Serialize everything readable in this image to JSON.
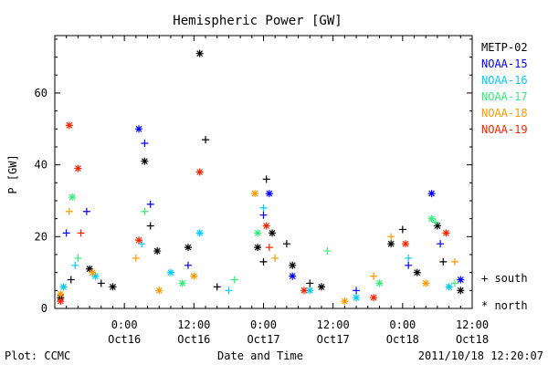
{
  "chart_data": {
    "type": "scatter",
    "title": "Hemispheric Power [GW]",
    "ylabel": "P [GW]",
    "xlabel": "Date and Time",
    "ylim": [
      0,
      76
    ],
    "xlim": [
      "2011-10-15T12:00",
      "2011-10-18T12:00"
    ],
    "y_ticks": [
      0,
      20,
      40,
      60
    ],
    "x_ticks": [
      {
        "time": "2011-10-16T00:00",
        "label_top": "0:00",
        "label_bottom": "Oct16"
      },
      {
        "time": "2011-10-16T12:00",
        "label_top": "12:00",
        "label_bottom": "Oct16"
      },
      {
        "time": "2011-10-17T00:00",
        "label_top": "0:00",
        "label_bottom": "Oct17"
      },
      {
        "time": "2011-10-17T12:00",
        "label_top": "12:00",
        "label_bottom": "Oct17"
      },
      {
        "time": "2011-10-18T00:00",
        "label_top": "0:00",
        "label_bottom": "Oct18"
      },
      {
        "time": "2011-10-18T12:00",
        "label_top": "12:00",
        "label_bottom": "Oct18"
      }
    ],
    "marker_legend": [
      {
        "symbol": "+",
        "label": "south"
      },
      {
        "symbol": "*",
        "label": "north"
      }
    ],
    "series": [
      {
        "name": "METP-02",
        "color": "#000000",
        "points": [
          [
            "2011-10-15T13:00",
            3,
            "n"
          ],
          [
            "2011-10-15T14:48",
            8,
            "s"
          ],
          [
            "2011-10-15T18:00",
            11,
            "n"
          ],
          [
            "2011-10-15T20:00",
            7,
            "s"
          ],
          [
            "2011-10-15T22:00",
            6,
            "n"
          ],
          [
            "2011-10-16T03:30",
            41,
            "n"
          ],
          [
            "2011-10-16T04:30",
            23,
            "s"
          ],
          [
            "2011-10-16T05:40",
            16,
            "n"
          ],
          [
            "2011-10-16T11:00",
            17,
            "n"
          ],
          [
            "2011-10-16T13:00",
            71,
            "n"
          ],
          [
            "2011-10-16T14:00",
            47,
            "s"
          ],
          [
            "2011-10-16T16:00",
            6,
            "s"
          ],
          [
            "2011-10-16T23:00",
            17,
            "n"
          ],
          [
            "2011-10-17T00:00",
            13,
            "s"
          ],
          [
            "2011-10-17T00:30",
            36,
            "s"
          ],
          [
            "2011-10-17T01:30",
            21,
            "n"
          ],
          [
            "2011-10-17T04:00",
            18,
            "s"
          ],
          [
            "2011-10-17T05:00",
            12,
            "n"
          ],
          [
            "2011-10-17T08:00",
            7,
            "s"
          ],
          [
            "2011-10-17T10:00",
            6,
            "n"
          ],
          [
            "2011-10-17T22:00",
            18,
            "n"
          ],
          [
            "2011-10-18T00:00",
            22,
            "s"
          ],
          [
            "2011-10-18T02:30",
            10,
            "n"
          ],
          [
            "2011-10-18T06:00",
            23,
            "n"
          ],
          [
            "2011-10-18T07:00",
            13,
            "s"
          ],
          [
            "2011-10-18T10:00",
            5,
            "n"
          ]
        ]
      },
      {
        "name": "NOAA-15",
        "color": "#0000ff",
        "points": [
          [
            "2011-10-15T14:00",
            21,
            "s"
          ],
          [
            "2011-10-15T17:30",
            27,
            "s"
          ],
          [
            "2011-10-16T02:30",
            50,
            "n"
          ],
          [
            "2011-10-16T03:30",
            46,
            "s"
          ],
          [
            "2011-10-16T04:30",
            29,
            "s"
          ],
          [
            "2011-10-16T11:00",
            12,
            "s"
          ],
          [
            "2011-10-17T01:00",
            32,
            "n"
          ],
          [
            "2011-10-17T00:00",
            26,
            "s"
          ],
          [
            "2011-10-17T05:00",
            9,
            "n"
          ],
          [
            "2011-10-17T16:00",
            5,
            "s"
          ],
          [
            "2011-10-18T01:00",
            12,
            "s"
          ],
          [
            "2011-10-18T05:00",
            32,
            "n"
          ],
          [
            "2011-10-18T06:30",
            18,
            "s"
          ],
          [
            "2011-10-18T10:00",
            8,
            "n"
          ]
        ]
      },
      {
        "name": "NOAA-16",
        "color": "#00ccff",
        "points": [
          [
            "2011-10-15T13:30",
            6,
            "n"
          ],
          [
            "2011-10-15T15:30",
            12,
            "s"
          ],
          [
            "2011-10-15T19:00",
            9,
            "n"
          ],
          [
            "2011-10-16T03:00",
            18,
            "s"
          ],
          [
            "2011-10-16T08:00",
            10,
            "n"
          ],
          [
            "2011-10-16T13:00",
            21,
            "n"
          ],
          [
            "2011-10-16T18:00",
            5,
            "s"
          ],
          [
            "2011-10-17T00:00",
            28,
            "s"
          ],
          [
            "2011-10-17T08:00",
            5,
            "n"
          ],
          [
            "2011-10-17T16:00",
            3,
            "n"
          ],
          [
            "2011-10-18T01:00",
            14,
            "s"
          ],
          [
            "2011-10-18T08:00",
            6,
            "n"
          ]
        ]
      },
      {
        "name": "NOAA-17",
        "color": "#33ee77",
        "points": [
          [
            "2011-10-15T15:00",
            31,
            "n"
          ],
          [
            "2011-10-15T16:00",
            14,
            "s"
          ],
          [
            "2011-10-16T03:30",
            27,
            "s"
          ],
          [
            "2011-10-16T10:00",
            7,
            "n"
          ],
          [
            "2011-10-16T19:00",
            8,
            "s"
          ],
          [
            "2011-10-16T23:00",
            21,
            "n"
          ],
          [
            "2011-10-17T11:00",
            16,
            "s"
          ],
          [
            "2011-10-17T20:00",
            7,
            "n"
          ],
          [
            "2011-10-18T05:00",
            25,
            "n"
          ],
          [
            "2011-10-18T05:40",
            24,
            "s"
          ],
          [
            "2011-10-18T09:00",
            7,
            "s"
          ]
        ]
      },
      {
        "name": "NOAA-18",
        "color": "#ff9900",
        "points": [
          [
            "2011-10-15T13:00",
            4,
            "n"
          ],
          [
            "2011-10-15T14:30",
            27,
            "s"
          ],
          [
            "2011-10-15T18:30",
            10,
            "n"
          ],
          [
            "2011-10-16T02:00",
            14,
            "s"
          ],
          [
            "2011-10-16T06:00",
            5,
            "n"
          ],
          [
            "2011-10-16T12:00",
            9,
            "n"
          ],
          [
            "2011-10-16T22:30",
            32,
            "n"
          ],
          [
            "2011-10-17T02:00",
            14,
            "s"
          ],
          [
            "2011-10-17T14:00",
            2,
            "n"
          ],
          [
            "2011-10-17T19:00",
            9,
            "s"
          ],
          [
            "2011-10-17T22:00",
            20,
            "s"
          ],
          [
            "2011-10-18T04:00",
            7,
            "n"
          ],
          [
            "2011-10-18T09:00",
            13,
            "s"
          ]
        ]
      },
      {
        "name": "NOAA-19",
        "color": "#ff2200",
        "points": [
          [
            "2011-10-15T13:00",
            2,
            "n"
          ],
          [
            "2011-10-15T14:30",
            51,
            "n"
          ],
          [
            "2011-10-15T16:00",
            39,
            "n"
          ],
          [
            "2011-10-15T16:30",
            21,
            "s"
          ],
          [
            "2011-10-16T02:30",
            19,
            "n"
          ],
          [
            "2011-10-16T13:00",
            38,
            "n"
          ],
          [
            "2011-10-17T00:30",
            23,
            "n"
          ],
          [
            "2011-10-17T01:00",
            17,
            "s"
          ],
          [
            "2011-10-17T07:00",
            5,
            "n"
          ],
          [
            "2011-10-17T19:00",
            3,
            "n"
          ],
          [
            "2011-10-18T00:30",
            18,
            "n"
          ],
          [
            "2011-10-18T07:30",
            21,
            "n"
          ]
        ]
      }
    ]
  },
  "footer": {
    "left": "Plot: CCMC",
    "right": "2011/10/18 12:20:07"
  }
}
